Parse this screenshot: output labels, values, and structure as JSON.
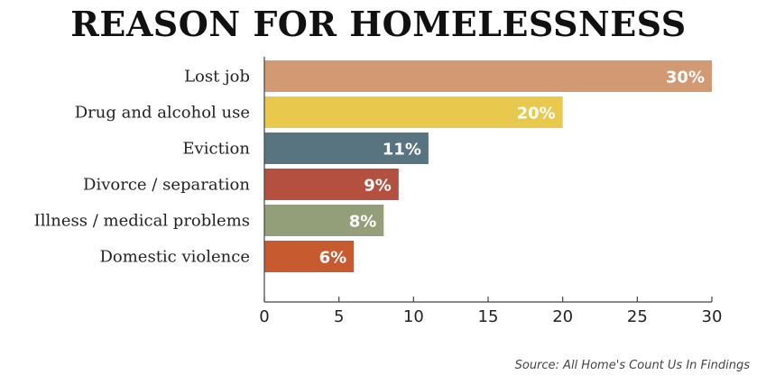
{
  "chart_data": {
    "type": "bar",
    "orientation": "horizontal",
    "title": "REASON FOR HOMELESSNESS",
    "categories": [
      "Lost job",
      "Drug and alcohol use",
      "Eviction",
      "Divorce / separation",
      "Illness / medical problems",
      "Domestic violence"
    ],
    "values": [
      30,
      20,
      11,
      9,
      8,
      6
    ],
    "value_labels": [
      "30%",
      "20%",
      "11%",
      "9%",
      "8%",
      "6%"
    ],
    "colors": [
      "#d19a73",
      "#e8c94e",
      "#587480",
      "#b4503f",
      "#939f78",
      "#c75a2e"
    ],
    "xlim": [
      0,
      30
    ],
    "xticks": [
      0,
      5,
      10,
      15,
      20,
      25,
      30
    ],
    "grid": false,
    "source": "Source: All Home's Count Us In Findings"
  }
}
